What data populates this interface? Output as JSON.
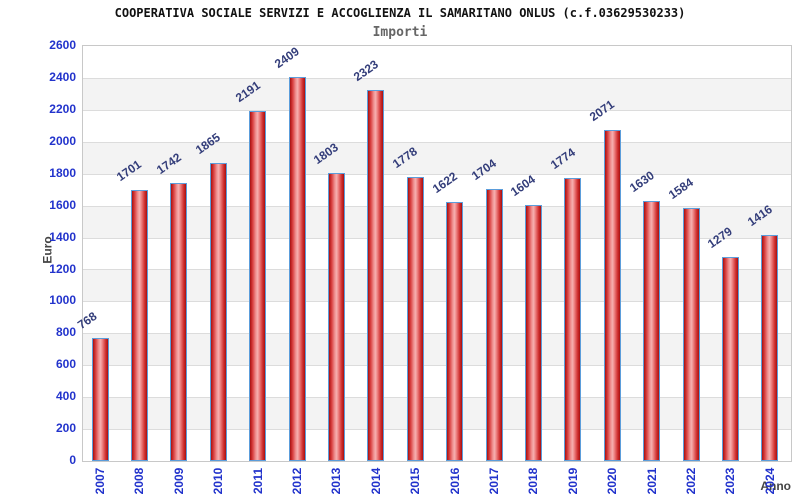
{
  "chart_data": {
    "type": "bar",
    "title": "COOPERATIVA SOCIALE SERVIZI E ACCOGLIENZA IL SAMARITANO ONLUS (c.f.03629530233)",
    "subtitle": "Importi",
    "xlabel": "Anno",
    "ylabel": "Euro",
    "categories": [
      "2007",
      "2008",
      "2009",
      "2010",
      "2011",
      "2012",
      "2013",
      "2014",
      "2015",
      "2016",
      "2017",
      "2018",
      "2019",
      "2020",
      "2021",
      "2022",
      "2023",
      "2024"
    ],
    "values": [
      768,
      1701,
      1742,
      1865,
      2191,
      2409,
      1803,
      2323,
      1778,
      1622,
      1704,
      1604,
      1774,
      2071,
      1630,
      1584,
      1279,
      1416
    ],
    "ylim": [
      0,
      2600
    ],
    "ytick_step": 200,
    "yticks": [
      0,
      200,
      400,
      600,
      800,
      1000,
      1200,
      1400,
      1600,
      1800,
      2000,
      2200,
      2400,
      2600
    ],
    "grid": true,
    "legend_position": "none",
    "colors": {
      "bar_fill_dark": "#a81010",
      "bar_fill_light": "#f6b0b0",
      "bar_border": "#5b9ddb",
      "axis_tick_label": "#2233cc",
      "value_label": "#333d7a",
      "axis_title": "#444444",
      "band_fill": "#f3f3f3",
      "gridline": "#dcdcdc",
      "plot_border": "#c8c8c8",
      "title_color": "#111111",
      "subtitle_color": "#666666",
      "background": "#ffffff"
    }
  }
}
